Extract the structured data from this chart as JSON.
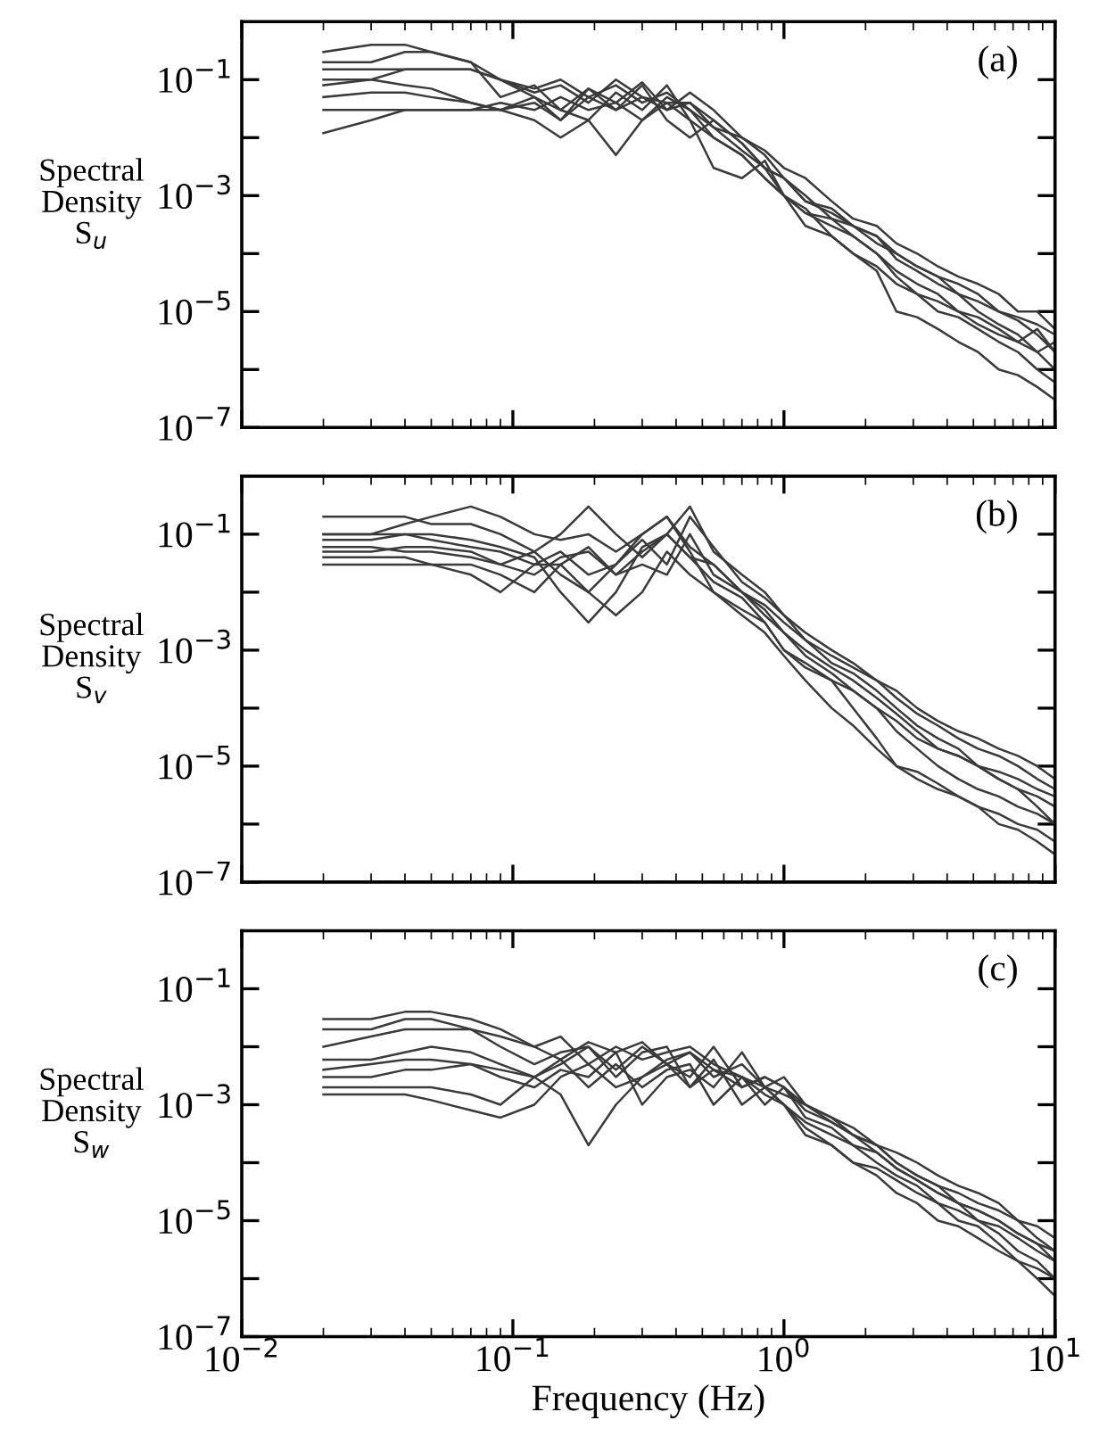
{
  "chart_data": [
    {
      "type": "line",
      "ylabel": "Spectral\nDensity\nS$_{u}$",
      "annotations": [
        "(a)"
      ],
      "tick_labels": "y",
      "log": "xy",
      "grid": false,
      "x": [
        0.02,
        0.03,
        0.04,
        0.05,
        0.07,
        0.09,
        0.12,
        0.15,
        0.19,
        0.24,
        0.3,
        0.37,
        0.45,
        0.55,
        0.7,
        0.85,
        1.0,
        1.2,
        1.5,
        1.8,
        2.2,
        2.6,
        3.1,
        3.7,
        4.4,
        5.2,
        6.2,
        7.3,
        8.6,
        10
      ],
      "xlim": [
        0.01,
        10
      ],
      "ylim": [
        1e-07,
        1
      ],
      "xticks": [
        {
          "value": 0.01,
          "label": null
        },
        {
          "value": 0.1,
          "label": null
        },
        {
          "value": 1,
          "label": null
        },
        {
          "value": 10,
          "label": null
        }
      ],
      "yticks": [
        {
          "value": 1e-07,
          "label": "10$^{−7}$"
        },
        {
          "value": 1e-06,
          "label": null
        },
        {
          "value": 1e-05,
          "label": "10$^{−5}$"
        },
        {
          "value": 0.0001,
          "label": null
        },
        {
          "value": 0.001,
          "label": "10$^{−3}$"
        },
        {
          "value": 0.01,
          "label": null
        },
        {
          "value": 0.1,
          "label": "10$^{−1}$"
        }
      ],
      "series": [
        {
          "color": "#3a3a3a",
          "values": [
            0.3,
            0.4,
            0.4,
            0.3,
            0.2,
            0.1,
            0.07,
            0.1,
            0.05,
            0.08,
            0.04,
            0.06,
            0.03,
            0.01,
            0.005,
            0.002,
            0.001,
            0.0005,
            0.0003,
            0.0002,
            0.0001,
            5e-05,
            3e-05,
            2e-05,
            1e-05,
            8e-06,
            5e-06,
            3e-06,
            5e-06,
            2e-06
          ]
        },
        {
          "color": "#3a3a3a",
          "values": [
            0.2,
            0.2,
            0.3,
            0.3,
            0.2,
            0.05,
            0.08,
            0.03,
            0.07,
            0.04,
            0.09,
            0.03,
            0.04,
            0.02,
            0.008,
            0.003,
            0.002,
            0.001,
            0.0004,
            0.0003,
            0.0002,
            8e-05,
            5e-05,
            3e-05,
            2e-05,
            1e-05,
            6e-06,
            4e-06,
            2e-06,
            3e-06
          ]
        },
        {
          "color": "#3a3a3a",
          "values": [
            0.15,
            0.15,
            0.15,
            0.15,
            0.15,
            0.1,
            0.06,
            0.08,
            0.04,
            0.1,
            0.05,
            0.03,
            0.06,
            0.03,
            0.01,
            0.005,
            0.002,
            0.0008,
            0.0006,
            0.0003,
            0.00015,
            0.0001,
            6e-05,
            4e-05,
            2e-05,
            1.5e-05,
            1e-05,
            7e-06,
            4e-06,
            2e-06
          ]
        },
        {
          "color": "#3a3a3a",
          "values": [
            0.08,
            0.1,
            0.15,
            0.15,
            0.15,
            0.1,
            0.05,
            0.03,
            0.02,
            0.06,
            0.03,
            0.08,
            0.02,
            0.003,
            0.002,
            0.004,
            0.001,
            0.0003,
            0.0002,
            0.0001,
            5e-05,
            1e-05,
            8e-06,
            5e-06,
            3e-06,
            2e-06,
            1e-06,
            8e-07,
            5e-07,
            3e-07
          ]
        },
        {
          "color": "#3a3a3a",
          "values": [
            0.05,
            0.06,
            0.06,
            0.05,
            0.04,
            0.03,
            0.04,
            0.02,
            0.05,
            0.03,
            0.08,
            0.02,
            0.01,
            0.02,
            0.008,
            0.003,
            0.001,
            0.0005,
            0.0004,
            0.0002,
            0.0001,
            4e-05,
            2e-05,
            1e-05,
            8e-06,
            5e-06,
            3e-06,
            2e-06,
            1e-06,
            6e-07
          ]
        },
        {
          "color": "#3a3a3a",
          "values": [
            0.03,
            0.03,
            0.03,
            0.03,
            0.03,
            0.03,
            0.02,
            0.01,
            0.02,
            0.005,
            0.02,
            0.04,
            0.02,
            0.01,
            0.005,
            0.002,
            0.001,
            0.0006,
            0.0002,
            0.0001,
            6e-05,
            3e-05,
            2e-05,
            1.5e-05,
            1e-05,
            6e-06,
            4e-06,
            3e-06,
            2e-06,
            1e-06
          ]
        },
        {
          "color": "#3a3a3a",
          "values": [
            0.012,
            0.02,
            0.03,
            0.03,
            0.03,
            0.04,
            0.03,
            0.05,
            0.03,
            0.04,
            0.02,
            0.05,
            0.03,
            0.015,
            0.006,
            0.003,
            0.002,
            0.0008,
            0.0005,
            0.0003,
            0.0002,
            0.0001,
            6e-05,
            4e-05,
            3e-05,
            2e-05,
            1e-05,
            8e-06,
            6e-06,
            4e-06
          ]
        },
        {
          "color": "#3a3a3a",
          "values": [
            0.1,
            0.1,
            0.08,
            0.07,
            0.04,
            0.03,
            0.05,
            0.02,
            0.07,
            0.03,
            0.05,
            0.04,
            0.04,
            0.015,
            0.01,
            0.006,
            0.003,
            0.002,
            0.0008,
            0.0004,
            0.0003,
            0.00015,
            0.0001,
            6e-05,
            4e-05,
            3e-05,
            2e-05,
            1e-05,
            1e-05,
            5e-06
          ]
        }
      ]
    },
    {
      "type": "line",
      "ylabel": "Spectral\nDensity\nS$_{v}$",
      "annotations": [
        "(b)"
      ],
      "tick_labels": "y",
      "log": "xy",
      "grid": false,
      "x": [
        0.02,
        0.03,
        0.04,
        0.05,
        0.07,
        0.09,
        0.12,
        0.15,
        0.19,
        0.24,
        0.3,
        0.37,
        0.45,
        0.55,
        0.7,
        0.85,
        1.0,
        1.2,
        1.5,
        1.8,
        2.2,
        2.6,
        3.1,
        3.7,
        4.4,
        5.2,
        6.2,
        7.3,
        8.6,
        10
      ],
      "xlim": [
        0.01,
        10
      ],
      "ylim": [
        1e-07,
        1
      ],
      "xticks": [
        {
          "value": 0.01,
          "label": null
        },
        {
          "value": 0.1,
          "label": null
        },
        {
          "value": 1,
          "label": null
        },
        {
          "value": 10,
          "label": null
        }
      ],
      "yticks": [
        {
          "value": 1e-07,
          "label": "10$^{−7}$"
        },
        {
          "value": 1e-06,
          "label": null
        },
        {
          "value": 1e-05,
          "label": "10$^{−5}$"
        },
        {
          "value": 0.0001,
          "label": null
        },
        {
          "value": 0.001,
          "label": "10$^{−3}$"
        },
        {
          "value": 0.01,
          "label": null
        },
        {
          "value": 0.1,
          "label": "10$^{−1}$"
        }
      ],
      "series": [
        {
          "color": "#3a3a3a",
          "values": [
            0.2,
            0.2,
            0.2,
            0.15,
            0.15,
            0.1,
            0.05,
            0.02,
            0.01,
            0.03,
            0.1,
            0.2,
            0.05,
            0.01,
            0.005,
            0.003,
            0.001,
            0.0005,
            0.0003,
            0.0002,
            0.0001,
            6e-05,
            3e-05,
            2e-05,
            1.5e-05,
            1e-05,
            8e-06,
            6e-06,
            4e-06,
            3e-06
          ]
        },
        {
          "color": "#3a3a3a",
          "values": [
            0.1,
            0.1,
            0.15,
            0.2,
            0.3,
            0.2,
            0.1,
            0.08,
            0.1,
            0.05,
            0.1,
            0.2,
            0.06,
            0.03,
            0.01,
            0.006,
            0.003,
            0.0015,
            0.0008,
            0.0005,
            0.0003,
            0.00015,
            8e-05,
            5e-05,
            3e-05,
            2e-05,
            1.5e-05,
            1e-05,
            6e-06,
            4e-06
          ]
        },
        {
          "color": "#3a3a3a",
          "values": [
            0.08,
            0.08,
            0.1,
            0.1,
            0.08,
            0.06,
            0.04,
            0.01,
            0.003,
            0.01,
            0.06,
            0.1,
            0.04,
            0.015,
            0.008,
            0.003,
            0.001,
            0.0006,
            0.0003,
            0.0001,
            3e-05,
            1e-05,
            8e-06,
            5e-06,
            3e-06,
            2e-06,
            1.5e-06,
            1e-06,
            8e-07,
            5e-07
          ]
        },
        {
          "color": "#3a3a3a",
          "values": [
            0.06,
            0.06,
            0.05,
            0.05,
            0.04,
            0.03,
            0.05,
            0.1,
            0.3,
            0.1,
            0.04,
            0.1,
            0.3,
            0.05,
            0.02,
            0.01,
            0.004,
            0.002,
            0.001,
            0.0006,
            0.0003,
            0.0002,
            0.0001,
            6e-05,
            4e-05,
            3e-05,
            2e-05,
            1.5e-05,
            1e-05,
            6e-06
          ]
        },
        {
          "color": "#3a3a3a",
          "values": [
            0.04,
            0.04,
            0.04,
            0.03,
            0.03,
            0.02,
            0.01,
            0.03,
            0.01,
            0.004,
            0.01,
            0.05,
            0.02,
            0.01,
            0.004,
            0.002,
            0.0008,
            0.0003,
            0.0001,
            5e-05,
            2e-05,
            1e-05,
            6e-06,
            4e-06,
            3e-06,
            2e-06,
            1e-06,
            8e-07,
            5e-07,
            3e-07
          ]
        },
        {
          "color": "#3a3a3a",
          "values": [
            0.03,
            0.03,
            0.03,
            0.03,
            0.02,
            0.01,
            0.03,
            0.05,
            0.02,
            0.03,
            0.08,
            0.03,
            0.2,
            0.06,
            0.015,
            0.008,
            0.004,
            0.0015,
            0.0006,
            0.0004,
            0.0002,
            0.0001,
            5e-05,
            3e-05,
            2e-05,
            1e-05,
            6e-06,
            4e-06,
            3e-06,
            2e-06
          ]
        },
        {
          "color": "#3a3a3a",
          "values": [
            0.05,
            0.05,
            0.06,
            0.06,
            0.05,
            0.03,
            0.02,
            0.04,
            0.05,
            0.02,
            0.05,
            0.1,
            0.04,
            0.03,
            0.01,
            0.005,
            0.002,
            0.001,
            0.0005,
            0.0003,
            0.00015,
            8e-05,
            4e-05,
            2e-05,
            1.5e-05,
            1e-05,
            6e-06,
            4e-06,
            2e-06,
            1e-06
          ]
        },
        {
          "color": "#3a3a3a",
          "values": [
            0.1,
            0.1,
            0.1,
            0.08,
            0.06,
            0.05,
            0.03,
            0.03,
            0.06,
            0.02,
            0.03,
            0.02,
            0.1,
            0.02,
            0.01,
            0.004,
            0.002,
            0.0008,
            0.0004,
            0.0002,
            0.0001,
            4e-05,
            2e-05,
            1e-05,
            6e-06,
            4e-06,
            3e-06,
            2e-06,
            1.5e-06,
            1e-06
          ]
        }
      ]
    },
    {
      "type": "line",
      "ylabel": "Spectral\nDensity\nS$_{w}$",
      "xlabel": "Frequency (Hz)",
      "annotations": [
        "(c)"
      ],
      "log": "xy",
      "grid": false,
      "x": [
        0.02,
        0.03,
        0.04,
        0.05,
        0.07,
        0.09,
        0.12,
        0.15,
        0.19,
        0.24,
        0.3,
        0.37,
        0.45,
        0.55,
        0.7,
        0.85,
        1.0,
        1.2,
        1.5,
        1.8,
        2.2,
        2.6,
        3.1,
        3.7,
        4.4,
        5.2,
        6.2,
        7.3,
        8.6,
        10
      ],
      "xlim": [
        0.01,
        10
      ],
      "ylim": [
        1e-07,
        1
      ],
      "xticks": [
        {
          "value": 0.01,
          "label": "10$^{−2}$"
        },
        {
          "value": 0.1,
          "label": "10$^{−1}$"
        },
        {
          "value": 1,
          "label": "10$^{0}$"
        },
        {
          "value": 10,
          "label": "10$^{1}$"
        }
      ],
      "yticks": [
        {
          "value": 1e-07,
          "label": "10$^{−7}$"
        },
        {
          "value": 1e-06,
          "label": null
        },
        {
          "value": 1e-05,
          "label": "10$^{−5}$"
        },
        {
          "value": 0.0001,
          "label": null
        },
        {
          "value": 0.001,
          "label": "10$^{−3}$"
        },
        {
          "value": 0.01,
          "label": null
        },
        {
          "value": 0.1,
          "label": "10$^{−1}$"
        }
      ],
      "series": [
        {
          "color": "#3a3a3a",
          "values": [
            0.03,
            0.03,
            0.04,
            0.04,
            0.03,
            0.02,
            0.01,
            0.015,
            0.005,
            0.01,
            0.006,
            0.008,
            0.01,
            0.005,
            0.003,
            0.002,
            0.003,
            0.001,
            0.0006,
            0.0004,
            0.0002,
            0.00015,
            0.0001,
            6e-05,
            4e-05,
            3e-05,
            2e-05,
            1e-05,
            8e-06,
            5e-06
          ]
        },
        {
          "color": "#3a3a3a",
          "values": [
            0.02,
            0.02,
            0.03,
            0.03,
            0.02,
            0.01,
            0.005,
            0.008,
            0.01,
            0.004,
            0.01,
            0.005,
            0.003,
            0.01,
            0.002,
            0.003,
            0.002,
            0.001,
            0.0005,
            0.0003,
            0.00015,
            8e-05,
            5e-05,
            3e-05,
            2e-05,
            1.5e-05,
            1e-05,
            6e-06,
            4e-06,
            2e-06
          ]
        },
        {
          "color": "#3a3a3a",
          "values": [
            0.01,
            0.015,
            0.02,
            0.02,
            0.02,
            0.015,
            0.01,
            0.006,
            0.012,
            0.008,
            0.012,
            0.005,
            0.008,
            0.003,
            0.005,
            0.002,
            0.0015,
            0.001,
            0.0006,
            0.0003,
            0.0002,
            0.0001,
            6e-05,
            4e-05,
            3e-05,
            2e-05,
            1.5e-05,
            1e-05,
            5e-06,
            3e-06
          ]
        },
        {
          "color": "#3a3a3a",
          "values": [
            0.006,
            0.006,
            0.008,
            0.01,
            0.008,
            0.005,
            0.003,
            0.0015,
            0.0002,
            0.001,
            0.003,
            0.005,
            0.002,
            0.006,
            0.001,
            0.002,
            0.001,
            0.0004,
            0.0002,
            0.0001,
            6e-05,
            3e-05,
            2e-05,
            1e-05,
            8e-06,
            5e-06,
            3e-06,
            2e-06,
            1.5e-06,
            1e-06
          ]
        },
        {
          "color": "#3a3a3a",
          "values": [
            0.003,
            0.003,
            0.004,
            0.004,
            0.005,
            0.004,
            0.003,
            0.005,
            0.01,
            0.003,
            0.008,
            0.01,
            0.002,
            0.004,
            0.002,
            0.003,
            0.002,
            0.0008,
            0.0005,
            0.0003,
            0.0002,
            0.0001,
            6e-05,
            4e-05,
            2e-05,
            1.5e-05,
            1e-05,
            6e-06,
            4e-06,
            3e-06
          ]
        },
        {
          "color": "#3a3a3a",
          "values": [
            0.002,
            0.002,
            0.002,
            0.002,
            0.0015,
            0.001,
            0.003,
            0.006,
            0.002,
            0.005,
            0.002,
            0.004,
            0.005,
            0.001,
            0.003,
            0.0015,
            0.001,
            0.0005,
            0.0003,
            0.0002,
            0.0001,
            6e-05,
            4e-05,
            2e-05,
            1.5e-05,
            1e-05,
            6e-06,
            3e-06,
            2e-06,
            1e-06
          ]
        },
        {
          "color": "#3a3a3a",
          "values": [
            0.0015,
            0.0015,
            0.0015,
            0.0012,
            0.0008,
            0.0006,
            0.001,
            0.003,
            0.005,
            0.002,
            0.003,
            0.006,
            0.008,
            0.004,
            0.003,
            0.001,
            0.002,
            0.0006,
            0.0004,
            0.0002,
            0.00015,
            8e-05,
            5e-05,
            3e-05,
            2e-05,
            1e-05,
            8e-06,
            5e-06,
            3e-06,
            2e-06
          ]
        },
        {
          "color": "#3a3a3a",
          "values": [
            0.004,
            0.005,
            0.006,
            0.006,
            0.005,
            0.003,
            0.002,
            0.004,
            0.003,
            0.008,
            0.001,
            0.003,
            0.004,
            0.002,
            0.008,
            0.002,
            0.001,
            0.0003,
            0.0002,
            0.0001,
            8e-05,
            5e-05,
            3e-05,
            2e-05,
            1e-05,
            8e-06,
            4e-06,
            2e-06,
            1e-06,
            5e-07
          ]
        }
      ]
    }
  ]
}
